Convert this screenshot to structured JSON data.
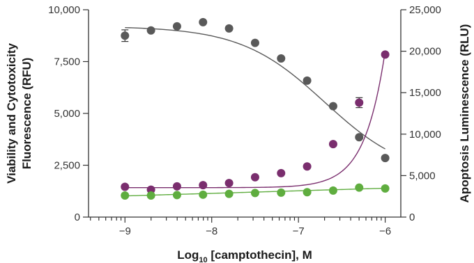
{
  "chart_data": {
    "type": "scatter",
    "xlabel_prefix": "Log",
    "xlabel_sub": "10",
    "xlabel_suffix": " [camptothecin], M",
    "ylabel_left_line1": "Viability and Cytotoxicity",
    "ylabel_left_line2": "Fluorescence (RFU)",
    "ylabel_right": "Apoptosis Luminescence (RLU)",
    "xlim": [
      -9.42,
      -5.82
    ],
    "ylim_left": [
      0,
      10000
    ],
    "ylim_right": [
      0,
      25000
    ],
    "x_ticks": [
      -9,
      -8,
      -7,
      -6
    ],
    "x_tick_labels": [
      "−9",
      "−8",
      "−7",
      "−6"
    ],
    "y_left_ticks": [
      0,
      2500,
      5000,
      7500,
      10000
    ],
    "y_left_tick_labels": [
      "0",
      "2,500",
      "5,000",
      "7,500",
      "10,000"
    ],
    "y_right_ticks": [
      0,
      5000,
      10000,
      15000,
      20000,
      25000
    ],
    "y_right_tick_labels": [
      "0",
      "5,000",
      "10,000",
      "15,000",
      "20,000",
      "25,000"
    ],
    "grid": false,
    "series": [
      {
        "axis": "left",
        "color": "#595959",
        "x": [
          -9.0,
          -8.7,
          -8.4,
          -8.1,
          -7.8,
          -7.5,
          -7.2,
          -6.9,
          -6.6,
          -6.3,
          -6.0
        ],
        "y": [
          8750,
          9000,
          9200,
          9400,
          9100,
          8400,
          7650,
          6580,
          5350,
          3850,
          2850
        ],
        "err": [
          280,
          150,
          100,
          90,
          200,
          80,
          70,
          70,
          70,
          60,
          60
        ],
        "fit": {
          "top": 9200,
          "bottom": 1900,
          "logEC50": -6.7,
          "hill": -0.9
        }
      },
      {
        "axis": "right",
        "color": "#7a2e6e",
        "x": [
          -9.0,
          -8.7,
          -8.4,
          -8.1,
          -7.8,
          -7.5,
          -7.2,
          -6.9,
          -6.6,
          -6.3,
          -6.0
        ],
        "y": [
          3650,
          3300,
          3700,
          3850,
          4100,
          4800,
          5300,
          6100,
          8800,
          13800,
          19600
        ],
        "err": [
          150,
          150,
          150,
          150,
          150,
          200,
          200,
          200,
          200,
          600,
          500
        ],
        "fit": {
          "type": "exp",
          "base": 3550,
          "a": 16500,
          "b": 4.26
        }
      },
      {
        "axis": "right",
        "color": "#5fad3f",
        "x": [
          -9.0,
          -8.7,
          -8.4,
          -8.1,
          -7.8,
          -7.5,
          -7.2,
          -6.9,
          -6.6,
          -6.3,
          -6.0
        ],
        "y": [
          2600,
          2600,
          2650,
          2700,
          2800,
          2900,
          2950,
          3000,
          3200,
          3550,
          3450
        ],
        "err": [
          80,
          80,
          80,
          80,
          80,
          80,
          80,
          80,
          80,
          80,
          80
        ],
        "fit": {
          "type": "linear",
          "y0": 2550,
          "y1": 3480
        }
      }
    ]
  }
}
